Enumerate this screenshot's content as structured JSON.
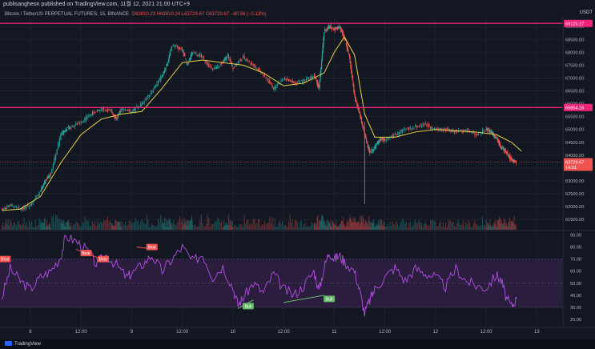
{
  "header": {
    "published_text": "publisangheon published on TradingView.com, 11월 12, 2021 21:00 UTC+9",
    "symbol": "Bitcoin / TetherUS PERPETUAL FUTURES, 15, BINANCE",
    "ohlc": "O63810.23 H63810.24 L63729.67 C63729.67 −80.56 (−0.13%)",
    "currency": "USDT"
  },
  "footer": {
    "brand": "TradingView"
  },
  "colors": {
    "bg": "#131722",
    "up": "#26a69a",
    "down": "#ef5350",
    "ma": "#e6d24a",
    "level": "#f0237a",
    "rsi": "#b44ee6",
    "rsi_band": "#2a1d3d"
  },
  "chart_data": [
    {
      "type": "line",
      "title": "Bitcoin / TetherUS PERPETUAL FUTURES, 15, BINANCE",
      "xlabel": "",
      "ylabel": "",
      "x_ticks": [
        "8",
        "12:00",
        "9",
        "12:00",
        "10",
        "12:00",
        "11",
        "12:00",
        "12",
        "12:00",
        "13"
      ],
      "y_ticks": [
        61500,
        62000,
        62500,
        63000,
        63500,
        64000,
        64500,
        65000,
        65500,
        66000,
        66500,
        67000,
        67500,
        68000,
        68500,
        69000
      ],
      "y_tick_labels": [
        "61500.00",
        "62000.00",
        "62500.00",
        "63000.00",
        "63500.00",
        "64000.00",
        "64500.00",
        "65000.00",
        "65500.00",
        "66000.00",
        "66500.00",
        "67000.00",
        "67500.00",
        "68000.00",
        "68500.00",
        "69000.00"
      ],
      "ylim": [
        61100,
        69350
      ],
      "x_day_range": [
        7.7,
        13.25
      ],
      "series": [
        {
          "values_price_close": {
            "x": [
              7.72,
              7.8,
              7.9,
              8.0,
              8.1,
              8.15,
              8.2,
              8.3,
              8.35,
              8.4,
              8.5,
              8.6,
              8.7,
              8.8,
              8.85,
              8.9,
              9.0,
              9.1,
              9.2,
              9.3,
              9.35,
              9.4,
              9.5,
              9.55,
              9.6,
              9.7,
              9.8,
              9.9,
              9.95,
              10.0,
              10.1,
              10.2,
              10.3,
              10.4,
              10.5,
              10.6,
              10.7,
              10.8,
              10.85,
              10.9,
              10.95,
              11.0,
              11.05,
              11.1,
              11.15,
              11.2,
              11.25,
              11.3,
              11.35,
              11.4,
              11.45,
              11.5,
              11.6,
              11.7,
              11.8,
              11.9,
              12.0,
              12.1,
              12.2,
              12.3,
              12.4,
              12.5,
              12.55,
              12.6,
              12.65,
              12.7,
              12.75,
              12.8
            ],
            "y": [
              61900,
              62050,
              61900,
              62100,
              62600,
              63000,
              63300,
              64800,
              65000,
              65100,
              65300,
              65600,
              65800,
              65700,
              65400,
              65800,
              65700,
              66000,
              66500,
              67100,
              67500,
              68300,
              68100,
              67500,
              68000,
              67800,
              67300,
              67600,
              67900,
              67400,
              67800,
              67500,
              67100,
              66600,
              67000,
              66800,
              66900,
              67100,
              66600,
              68800,
              69000,
              68900,
              69000,
              68600,
              67800,
              66300,
              65600,
              64800,
              64100,
              64300,
              64600,
              64600,
              64800,
              65000,
              65100,
              65200,
              65000,
              65000,
              64900,
              65000,
              64800,
              65000,
              64900,
              64700,
              64300,
              64100,
              63800,
              63730
            ]
          }
        },
        {
          "name_hidden": "moving-average",
          "values_ma": {
            "x": [
              7.72,
              7.9,
              8.1,
              8.3,
              8.5,
              8.7,
              8.9,
              9.1,
              9.3,
              9.5,
              9.7,
              9.9,
              10.1,
              10.3,
              10.5,
              10.7,
              10.9,
              11.0,
              11.1,
              11.2,
              11.3,
              11.4,
              11.6,
              11.8,
              12.0,
              12.2,
              12.4,
              12.6,
              12.75,
              12.85
            ],
            "y": [
              61850,
              61900,
              62400,
              63700,
              64800,
              65400,
              65600,
              65700,
              66600,
              67600,
              67700,
              67600,
              67500,
              67200,
              66700,
              66800,
              67200,
              68000,
              68600,
              67900,
              65600,
              64700,
              64700,
              64900,
              65000,
              64950,
              64900,
              64800,
              64500,
              64150
            ]
          }
        }
      ],
      "horizontal_levels": [
        69125.27,
        65854.16
      ],
      "horizontal_level_labels": [
        "69125.27",
        "65854.16"
      ],
      "last_price": 63729.67,
      "last_price_label": "63729.67",
      "last_price_timer": "14:01"
    },
    {
      "type": "line",
      "xlabel": "",
      "ylabel": "",
      "y_ticks": [
        20,
        30,
        40,
        50,
        60,
        70,
        80,
        90
      ],
      "y_tick_labels": [
        "20.00",
        "30.00",
        "40.00",
        "50.00",
        "60.00",
        "70.00",
        "80.00",
        "90.00"
      ],
      "ylim": [
        14,
        93
      ],
      "bands": [
        30,
        70
      ],
      "midline": 50,
      "series": [
        {
          "values_rsi": {
            "x": [
              7.72,
              7.8,
              7.9,
              8.0,
              8.1,
              8.2,
              8.3,
              8.35,
              8.45,
              8.55,
              8.65,
              8.75,
              8.85,
              8.95,
              9.0,
              9.1,
              9.2,
              9.3,
              9.4,
              9.5,
              9.6,
              9.7,
              9.8,
              9.9,
              10.0,
              10.05,
              10.1,
              10.2,
              10.3,
              10.4,
              10.5,
              10.6,
              10.7,
              10.8,
              10.85,
              10.9,
              10.95,
              11.0,
              11.05,
              11.1,
              11.2,
              11.25,
              11.3,
              11.35,
              11.4,
              11.5,
              11.6,
              11.7,
              11.8,
              11.9,
              12.0,
              12.1,
              12.2,
              12.3,
              12.4,
              12.5,
              12.6,
              12.65,
              12.7,
              12.75,
              12.8
            ],
            "y": [
              38,
              62,
              52,
              45,
              55,
              60,
              72,
              89,
              85,
              78,
              66,
              73,
              65,
              55,
              58,
              65,
              73,
              60,
              70,
              80,
              68,
              74,
              55,
              64,
              46,
              32,
              38,
              50,
              42,
              58,
              45,
              40,
              48,
              60,
              44,
              63,
              76,
              70,
              73,
              68,
              60,
              44,
              25,
              36,
              45,
              55,
              63,
              52,
              62,
              58,
              55,
              47,
              62,
              52,
              48,
              46,
              57,
              52,
              37,
              31,
              37
            ]
          }
        }
      ],
      "annotations": [
        {
          "label": "Bear",
          "x": 7.75,
          "y": 70
        },
        {
          "label": "Bear",
          "x": 8.55,
          "y": 75
        },
        {
          "label": "Bear",
          "x": 8.72,
          "y": 70
        },
        {
          "label": "Bear",
          "x": 9.2,
          "y": 80
        },
        {
          "label": "Bull",
          "x": 10.15,
          "y": 31
        },
        {
          "label": "Bull",
          "x": 10.95,
          "y": 37
        }
      ],
      "divergence_lines": [
        {
          "from": [
            8.45,
            78
          ],
          "to": [
            8.7,
            70
          ]
        },
        {
          "from": [
            9.05,
            80
          ],
          "to": [
            9.25,
            78
          ]
        },
        {
          "from": [
            10.05,
            29
          ],
          "to": [
            10.2,
            36
          ]
        },
        {
          "from": [
            10.5,
            34
          ],
          "to": [
            10.9,
            40
          ]
        }
      ]
    }
  ]
}
